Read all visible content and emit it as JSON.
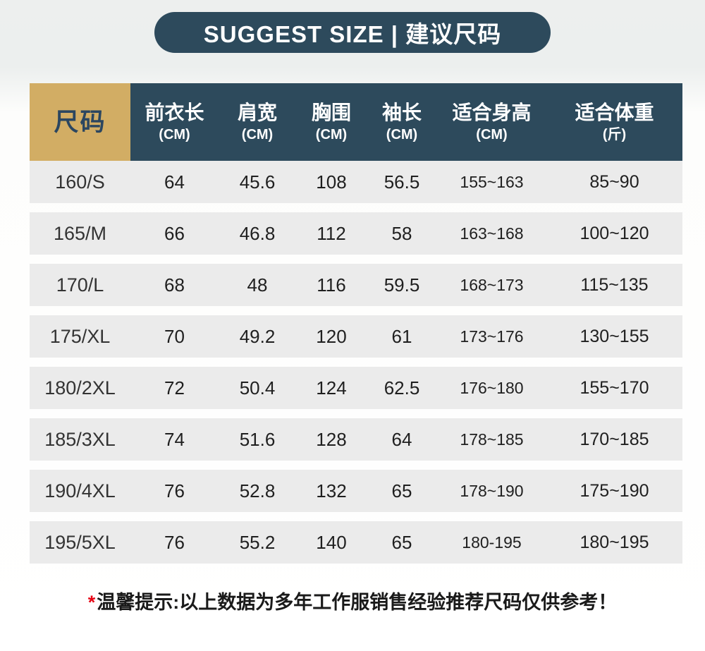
{
  "banner": {
    "title": "SUGGEST SIZE | 建议尺码"
  },
  "table": {
    "columns": [
      {
        "key": "size",
        "label": "尺码",
        "sub": ""
      },
      {
        "key": "front-length",
        "label": "前衣长",
        "sub": "(CM)"
      },
      {
        "key": "shoulder",
        "label": "肩宽",
        "sub": "(CM)"
      },
      {
        "key": "chest",
        "label": "胸围",
        "sub": "(CM)"
      },
      {
        "key": "sleeve",
        "label": "袖长",
        "sub": "(CM)"
      },
      {
        "key": "height",
        "label": "适合身高",
        "sub": "(CM)"
      },
      {
        "key": "weight",
        "label": "适合体重",
        "sub": "(斤)"
      }
    ],
    "rows": [
      [
        "160/S",
        "64",
        "45.6",
        "108",
        "56.5",
        "155~163",
        "85~90"
      ],
      [
        "165/M",
        "66",
        "46.8",
        "112",
        "58",
        "163~168",
        "100~120"
      ],
      [
        "170/L",
        "68",
        "48",
        "116",
        "59.5",
        "168~173",
        "115~135"
      ],
      [
        "175/XL",
        "70",
        "49.2",
        "120",
        "61",
        "173~176",
        "130~155"
      ],
      [
        "180/2XL",
        "72",
        "50.4",
        "124",
        "62.5",
        "176~180",
        "155~170"
      ],
      [
        "185/3XL",
        "74",
        "51.6",
        "128",
        "64",
        "178~185",
        "170~185"
      ],
      [
        "190/4XL",
        "76",
        "52.8",
        "132",
        "65",
        "178~190",
        "175~190"
      ],
      [
        "195/5XL",
        "76",
        "55.2",
        "140",
        "65",
        "180-195",
        "180~195"
      ]
    ]
  },
  "footer": {
    "asterisk": "*",
    "note_label": "温馨提示:",
    "note_text": "以上数据为多年工作服销售经验推荐尺码仅供参考！"
  },
  "colors": {
    "banner_bg": "#2d4a5c",
    "header_bg": "#2d4a5c",
    "size_cell_bg": "#d2ad64",
    "size_cell_text": "#2b4660",
    "row_bg": "#ebebeb",
    "asterisk_red": "#e60012"
  }
}
